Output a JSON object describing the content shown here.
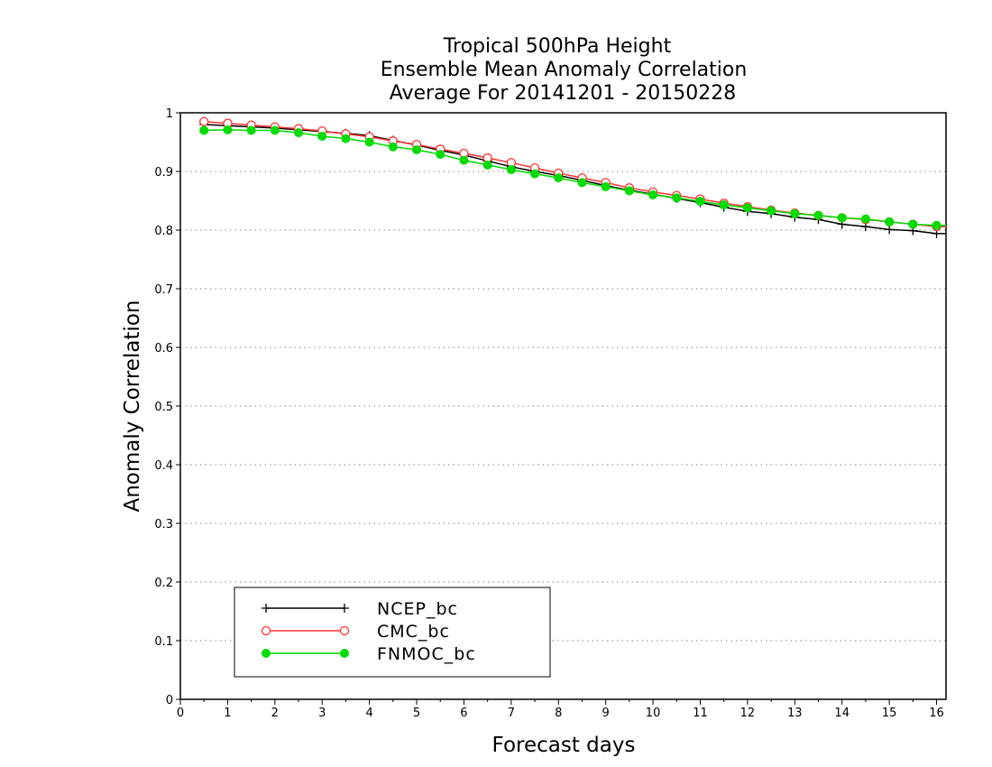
{
  "chart_data": {
    "type": "line",
    "title": [
      "Tropical 500hPa Height",
      "Ensemble Mean Anomaly Correlation",
      "Average For 20141201 - 20150228"
    ],
    "xlabel": "Forecast days",
    "ylabel": "Anomaly Correlation",
    "xlim": [
      0,
      16.2
    ],
    "ylim": [
      0,
      1
    ],
    "xticks": [
      "0",
      "1",
      "2",
      "3",
      "4",
      "5",
      "6",
      "7",
      "8",
      "9",
      "10",
      "11",
      "12",
      "13",
      "14",
      "15",
      "16"
    ],
    "yticks": [
      "0",
      "0.1",
      "0.2",
      "0.3",
      "0.4",
      "0.5",
      "0.6",
      "0.7",
      "0.8",
      "0.9",
      "1"
    ],
    "grid": "horizontal dotted",
    "legend_placement": "lower-left",
    "x": [
      0.5,
      1,
      1.5,
      2,
      2.5,
      3,
      3.5,
      4,
      4.5,
      5,
      5.5,
      6,
      6.5,
      7,
      7.5,
      8,
      8.5,
      9,
      9.5,
      10,
      10.5,
      11,
      11.5,
      12,
      12.5,
      13,
      13.5,
      14,
      14.5,
      15,
      15.5,
      16
    ],
    "series": [
      {
        "name": "NCEP_bc",
        "color": "#000000",
        "marker": "plus",
        "values": [
          0.98,
          0.978,
          0.976,
          0.974,
          0.971,
          0.968,
          0.965,
          0.961,
          0.953,
          0.945,
          0.936,
          0.928,
          0.918,
          0.908,
          0.9,
          0.893,
          0.885,
          0.876,
          0.868,
          0.861,
          0.854,
          0.847,
          0.839,
          0.832,
          0.828,
          0.822,
          0.818,
          0.81,
          0.806,
          0.801,
          0.799,
          0.794
        ]
      },
      {
        "name": "CMC_bc",
        "color": "#ff3333",
        "marker": "open-circle",
        "values": [
          0.985,
          0.982,
          0.979,
          0.976,
          0.973,
          0.969,
          0.964,
          0.959,
          0.952,
          0.946,
          0.938,
          0.931,
          0.923,
          0.915,
          0.906,
          0.897,
          0.889,
          0.881,
          0.872,
          0.865,
          0.859,
          0.853,
          0.846,
          0.84,
          0.834,
          0.829,
          0.825,
          0.821,
          0.818,
          0.814,
          0.81,
          0.806
        ]
      },
      {
        "name": "FNMOC_bc",
        "color": "#00dc00",
        "marker": "filled-circle",
        "values": [
          0.97,
          0.971,
          0.97,
          0.97,
          0.966,
          0.96,
          0.956,
          0.95,
          0.942,
          0.937,
          0.929,
          0.919,
          0.911,
          0.903,
          0.896,
          0.889,
          0.881,
          0.874,
          0.867,
          0.86,
          0.855,
          0.849,
          0.843,
          0.838,
          0.833,
          0.828,
          0.825,
          0.821,
          0.819,
          0.814,
          0.81,
          0.808
        ]
      }
    ]
  }
}
